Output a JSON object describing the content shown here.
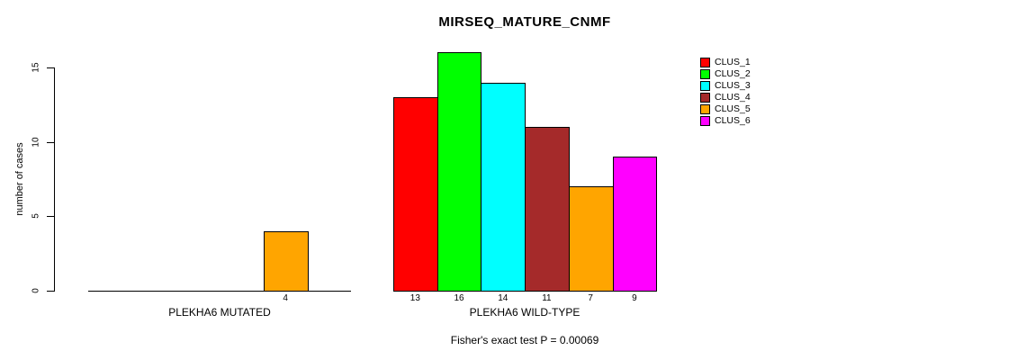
{
  "chart_data": {
    "type": "bar",
    "title": "MIRSEQ_MATURE_CNMF",
    "ylabel": "number of cases",
    "ylim": [
      0,
      15
    ],
    "yticks": [
      0,
      5,
      10,
      15
    ],
    "grid": false,
    "legend_position": "top-right",
    "annotation": "Fisher's exact test P = 0.00069",
    "clusters": [
      "CLUS_1",
      "CLUS_2",
      "CLUS_3",
      "CLUS_4",
      "CLUS_5",
      "CLUS_6"
    ],
    "cluster_colors": [
      "#FF0000",
      "#00FF00",
      "#00FFFF",
      "#A52A2A",
      "#FFA500",
      "#FF00FF"
    ],
    "groups": [
      {
        "label": "PLEKHA6 MUTATED",
        "values": [
          0,
          0,
          0,
          0,
          4,
          0
        ]
      },
      {
        "label": "PLEKHA6 WILD-TYPE",
        "values": [
          13,
          16,
          14,
          11,
          7,
          9
        ]
      }
    ]
  }
}
